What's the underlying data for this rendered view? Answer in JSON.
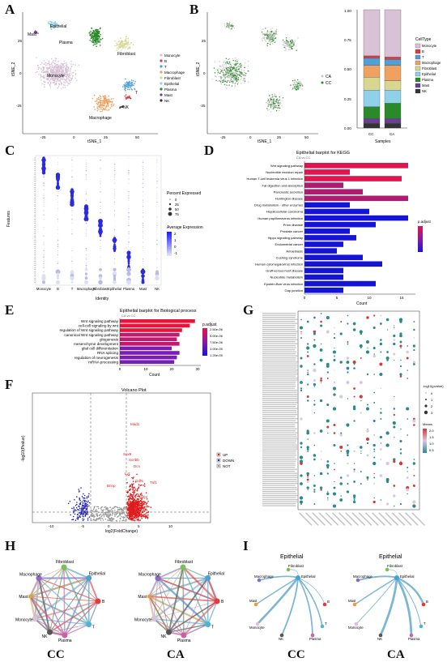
{
  "panels": {
    "A": "A",
    "B": "B",
    "C": "C",
    "D": "D",
    "E": "E",
    "F": "F",
    "G": "G",
    "H": "H",
    "I": "I"
  },
  "panelA": {
    "xlabel": "tSNE_1",
    "ylabel": "tSNE_2",
    "xticks": [
      "-25",
      "0",
      "25",
      "50"
    ],
    "yticks": [
      "25",
      "0",
      "-25"
    ],
    "cluster_labels": [
      "Mast",
      "Epithelial",
      "Plasma",
      "Fibroblast",
      "Monocyte",
      "Macrophage",
      "T",
      "NK"
    ],
    "legend": [
      {
        "name": "Monocyte",
        "color": "#d9c2d6"
      },
      {
        "name": "B",
        "color": "#e23b3b"
      },
      {
        "name": "T",
        "color": "#4f9fd8"
      },
      {
        "name": "Macrophage",
        "color": "#f0a060"
      },
      {
        "name": "Fibroblast",
        "color": "#d7d790"
      },
      {
        "name": "Epithelial",
        "color": "#8ed1e8"
      },
      {
        "name": "Plasma",
        "color": "#2a8a2a"
      },
      {
        "name": "Mast",
        "color": "#6a3d9a"
      },
      {
        "name": "NK",
        "color": "#333333"
      }
    ]
  },
  "panelB": {
    "xlabel": "tSNE_1",
    "ylabel": "tSNE_2",
    "xticks": [
      "-25",
      "0",
      "25",
      "50"
    ],
    "yticks": [
      "25",
      "0",
      "-25"
    ],
    "legend": [
      "CA",
      "CC"
    ],
    "bar_xlabel": "Samples",
    "bar_xticks": [
      "CC",
      "CA"
    ],
    "bar_yticks": [
      "0.00",
      "0.25",
      "0.50",
      "0.75",
      "1.00"
    ],
    "bar_legend_title": "CellType"
  },
  "chart_data": [
    {
      "type": "bar",
      "title": "",
      "xlabel": "Samples",
      "ylabel": "",
      "categories": [
        "CC",
        "CA"
      ],
      "ylim": [
        0,
        1
      ],
      "series": [
        {
          "name": "Monocyte",
          "values": [
            0.39,
            0.4
          ]
        },
        {
          "name": "B",
          "values": [
            0.02,
            0.02
          ]
        },
        {
          "name": "T",
          "values": [
            0.06,
            0.05
          ]
        },
        {
          "name": "Macrophage",
          "values": [
            0.1,
            0.13
          ]
        },
        {
          "name": "Fibroblast",
          "values": [
            0.11,
            0.08
          ]
        },
        {
          "name": "Epithelial",
          "values": [
            0.14,
            0.11
          ]
        },
        {
          "name": "Plasma",
          "values": [
            0.1,
            0.13
          ]
        },
        {
          "name": "Mast",
          "values": [
            0.04,
            0.04
          ]
        },
        {
          "name": "NK",
          "values": [
            0.04,
            0.04
          ]
        }
      ]
    },
    {
      "type": "bar",
      "title": "Epithelial barplot for KEGG",
      "subtitle": "CA vs CC",
      "xlabel": "Count",
      "xticks": [
        "0",
        "5",
        "10",
        "15"
      ],
      "legend_title": "p.adjust",
      "categories": [
        "Wnt signaling pathway",
        "Nucleotide excision repair",
        "Human T-cell leukemia virus 1 infection",
        "Fat digestion and absorption",
        "Pancreatic secretion",
        "Huntington disease",
        "Drug metabolism - other enzymes",
        "Hepatocellular carcinoma",
        "Human papillomavirus infection",
        "Prion disease",
        "Prostate cancer",
        "Hippo signaling pathway",
        "Endometrial cancer",
        "Amoebiasis",
        "Cushing syndrome",
        "Human cytomegalovirus infection",
        "Graft-versus-host disease",
        "Nucleotide metabolism",
        "Epstein-Barr virus infection",
        "Gap junction"
      ],
      "values": [
        16,
        7,
        15,
        6,
        9,
        16,
        7,
        10,
        16,
        11,
        7,
        8,
        6,
        5,
        9,
        12,
        6,
        6,
        11,
        6
      ]
    },
    {
      "type": "bar",
      "title": "Epithelial barplot for Biological process",
      "subtitle": "CA vs CC",
      "xlabel": "Count",
      "xticks": [
        "0",
        "10",
        "20",
        "30"
      ],
      "legend_title": "p.adjust",
      "legend_values": [
        "2.50e-06",
        "5.00e-06",
        "7.50e-06",
        "1.00e-05",
        "1.25e-05"
      ],
      "categories": [
        "Wnt signaling pathway",
        "cell-cell signaling by wnt",
        "regulation of Wnt signaling pathway",
        "canonical Wnt signaling pathway",
        "gliogenesis",
        "mesenchyme development",
        "glial cell differentiation",
        "RNA splicing",
        "regulation of neurogenesis",
        "mRNA processing"
      ],
      "values": [
        29,
        27,
        24,
        23,
        22,
        23,
        20,
        23,
        22,
        21
      ]
    }
  ],
  "panelC": {
    "xlabel": "Identity",
    "ylabel": "Features",
    "xticks": [
      "Monocyte",
      "B",
      "T",
      "Macrophage",
      "Fibroblast",
      "Epithelial",
      "Plasma",
      "Mast",
      "NK"
    ],
    "legend_pct_title": "Percent Expressed",
    "legend_pct": [
      "0",
      "25",
      "50",
      "75"
    ],
    "legend_avg_title": "Average Expression",
    "legend_avg": [
      "2",
      "1",
      "0",
      "-1"
    ]
  },
  "panelF": {
    "title": "Volcano Plot",
    "xlabel": "log2(FoldChange)",
    "ylabel": "-log10(Pvalue)",
    "xticks": [
      "-10",
      "-5",
      "0",
      "5",
      "10"
    ],
    "legend": [
      "UP",
      "DOWN",
      "NOT"
    ],
    "genes": [
      "Mad1",
      "Sox9",
      "Scribb",
      "Dcn",
      "Lyz",
      "Gdf6",
      "Brinp",
      "Tnf1",
      "Lhfpl"
    ]
  },
  "panelG": {
    "legend_p_title": "-log10(pvalue)",
    "legend_p": [
      "0",
      "1",
      "2",
      "3"
    ],
    "legend_m_title": "Means",
    "legend_m": [
      "2.0",
      "1.5",
      "1.0",
      "0.5"
    ]
  },
  "panelH": {
    "nodes": [
      "Fibroblast",
      "Macrophage",
      "Epithelial",
      "Mast",
      "B",
      "Monocyte",
      "T",
      "NK",
      "Plasma"
    ],
    "captions": [
      "CC",
      "CA"
    ]
  },
  "panelI": {
    "title": "Epithelial",
    "nodes": [
      "Fibroblast",
      "Macrophage",
      "Epithelial",
      "Mast",
      "B",
      "Monocyte",
      "T",
      "NK",
      "Plasma"
    ],
    "captions": [
      "CC",
      "CA"
    ]
  }
}
